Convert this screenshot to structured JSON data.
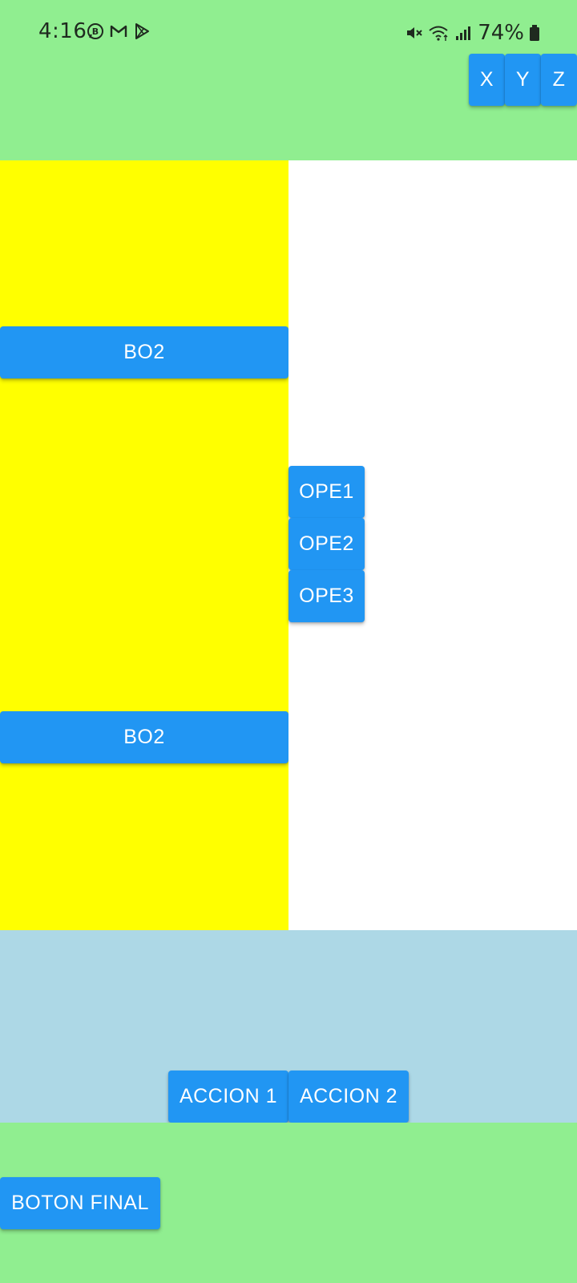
{
  "status_bar": {
    "time": "4:16",
    "battery": "74%",
    "notification_icons": [
      "business-chat-icon",
      "gmail-icon",
      "play-store-icon"
    ],
    "system_icons": [
      "mute-icon",
      "wifi-icon",
      "signal-icon",
      "battery-icon"
    ]
  },
  "header": {
    "buttons": [
      "X",
      "Y",
      "Z"
    ]
  },
  "left_panel": {
    "buttons": [
      "BO2",
      "BO2"
    ]
  },
  "center_group": {
    "buttons": [
      "OPE1",
      "OPE2",
      "OPE3"
    ]
  },
  "action_band": {
    "buttons": [
      "ACCION 1",
      "ACCION 2"
    ]
  },
  "footer": {
    "final_button": "BOTON FINAL"
  },
  "colors": {
    "header_bg": "#90EE90",
    "left_panel_bg": "#FFFF00",
    "right_panel_bg": "#FFFFFF",
    "action_band_bg": "#ADD8E6",
    "footer_bg": "#90EE90",
    "button_bg": "#2196F3",
    "button_text": "#FFFFFF"
  }
}
